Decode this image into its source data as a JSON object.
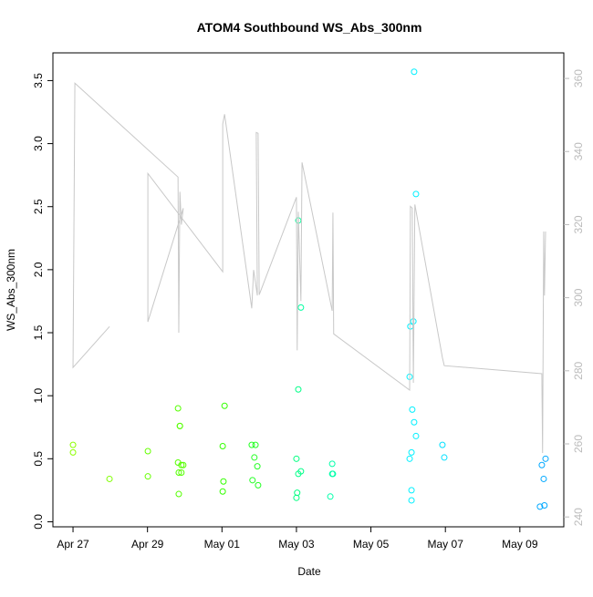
{
  "chart_data": {
    "type": "scatter",
    "title": "ATOM4 Southbound WS_Abs_300nm",
    "x_label": "Date",
    "y_label": "WS_Abs_300nm",
    "xlim": [
      -0.54,
      13.18
    ],
    "ylim": [
      -0.04,
      3.72
    ],
    "y2lim": [
      237.3,
      367.0
    ],
    "xticks": [
      {
        "value": 0,
        "label": "Apr 27"
      },
      {
        "value": 2,
        "label": "Apr 29"
      },
      {
        "value": 4,
        "label": "May 01"
      },
      {
        "value": 6,
        "label": "May 03"
      },
      {
        "value": 8,
        "label": "May 05"
      },
      {
        "value": 10,
        "label": "May 07"
      },
      {
        "value": 12,
        "label": "May 09"
      }
    ],
    "yticks": [
      {
        "value": 0,
        "label": "0.0"
      },
      0.5,
      {
        "value": 1,
        "label": "1.0"
      },
      1.5,
      {
        "value": 2,
        "label": "2.0"
      },
      2.5,
      {
        "value": 3,
        "label": "3.0"
      },
      3.5
    ],
    "y2ticks": [
      240,
      260,
      280,
      300,
      320,
      340,
      360
    ],
    "series": [
      {
        "type": "scatter",
        "x": [
          0,
          0,
          0.98,
          2.01,
          2.01,
          2.82,
          2.87,
          2.87,
          2.82,
          2.91,
          2.96,
          2.84,
          2.91,
          2.84,
          4.07,
          4.02,
          4.04,
          4.02,
          4.8,
          4.9,
          4.87,
          4.95,
          4.82,
          4.97,
          6.0,
          6.05,
          6.12,
          6.02,
          6.0,
          6.05,
          6.05,
          6.12,
          6.96,
          6.98,
          6.96,
          6.91,
          9.16,
          9.21,
          9.06,
          9.14,
          9.04,
          9.11,
          9.16,
          9.21,
          9.09,
          9.04,
          9.09,
          9.09,
          9.92,
          9.97,
          12.59,
          12.69,
          12.64,
          12.54,
          12.66
        ],
        "values": [
          0.61,
          0.55,
          0.34,
          0.56,
          0.36,
          0.9,
          0.76,
          0.76,
          0.47,
          0.45,
          0.45,
          0.39,
          0.39,
          0.22,
          0.92,
          0.6,
          0.32,
          0.24,
          0.61,
          0.61,
          0.51,
          0.44,
          0.33,
          0.29,
          0.5,
          0.38,
          0.4,
          0.23,
          0.19,
          1.05,
          2.39,
          1.7,
          0.46,
          0.38,
          0.38,
          0.2,
          3.57,
          2.6,
          1.55,
          1.59,
          1.15,
          0.89,
          0.79,
          0.68,
          0.55,
          0.5,
          0.25,
          0.17,
          0.61,
          0.51,
          0.45,
          0.5,
          0.34,
          0.12,
          0.13
        ],
        "colors": [
          "#8cff00",
          "#8cff00",
          "#80ff00",
          "#66ff00",
          "#66ff00",
          "#55ff00",
          "#55ff00",
          "#55ff00",
          "#55ff00",
          "#55ff00",
          "#55ff00",
          "#55ff00",
          "#55ff00",
          "#55ff00",
          "#33ff00",
          "#33ff00",
          "#33ff00",
          "#33ff00",
          "#22ff22",
          "#22ff22",
          "#22ff22",
          "#22ff22",
          "#22ff22",
          "#22ff22",
          "#00ff80",
          "#00ff88",
          "#00ff88",
          "#00ff80",
          "#00ff80",
          "#00ff88",
          "#00ff99",
          "#00ffa0",
          "#00ffaa",
          "#00ffaa",
          "#00ffaa",
          "#00ffaa",
          "#00f0ff",
          "#00f0ff",
          "#00f0ff",
          "#00f0ff",
          "#00f0ff",
          "#00f0ff",
          "#00f0ff",
          "#00f0ff",
          "#00f0ff",
          "#00f0ff",
          "#00f0ff",
          "#00f0ff",
          "#00e0ff",
          "#00e0ff",
          "#00a8ff",
          "#00a8ff",
          "#00a8ff",
          "#00a8ff",
          "#00a8ff"
        ]
      },
      {
        "type": "line",
        "axis": "y2",
        "color": "#c8c8c8",
        "x": [
          0.98,
          0,
          0.05,
          2.82,
          2.84,
          2.87,
          2.91,
          2.96,
          2.01,
          2.01,
          4.02,
          4.02,
          4.07,
          4.8,
          4.85,
          4.95,
          4.92,
          4.97,
          5.0,
          6.0,
          6.02,
          6.05,
          6.12,
          6.15,
          6.96,
          6.98,
          7.0,
          9.04,
          9.06,
          9.11,
          9.14,
          9.18,
          9.92,
          9.97,
          12.59,
          12.61,
          12.64,
          12.66,
          12.69
        ],
        "values": [
          292.1,
          280.9,
          358.7,
          333.0,
          290.4,
          329.0,
          320.0,
          324.5,
          293.4,
          334.0,
          307.1,
          347.5,
          350.2,
          297.1,
          307.6,
          300.6,
          345.2,
          345.0,
          300.8,
          327.5,
          285.6,
          323.5,
          299.1,
          337.0,
          296.4,
          323.3,
          290.1,
          274.7,
          325.0,
          324.5,
          276.7,
          325.5,
          283.6,
          281.4,
          279.2,
          257.5,
          318.1,
          300.6,
          318.1
        ]
      }
    ]
  }
}
